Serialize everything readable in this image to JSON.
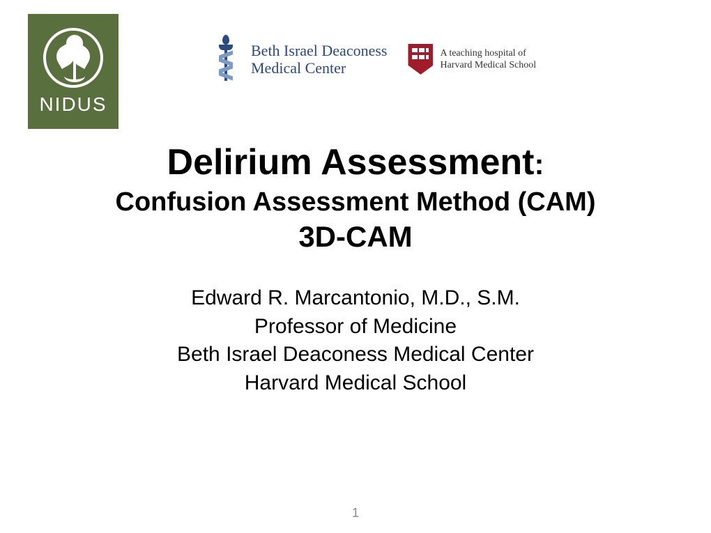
{
  "logos": {
    "nidus": {
      "label": "NIDUS",
      "bg_color": "#5a6f3e",
      "fg_color": "#ffffff"
    },
    "bidmc": {
      "line1": "Beth Israel Deaconess",
      "line2": "Medical Center",
      "color": "#2b4a7e"
    },
    "harvard": {
      "line1": "A teaching hospital of",
      "line2": "Harvard Medical School",
      "shield_color": "#a01c2b"
    }
  },
  "title": {
    "main": "Delirium Assessment",
    "colon": ":",
    "line2": "Confusion Assessment Method (CAM)",
    "line3": "3D-CAM"
  },
  "author": {
    "name": "Edward R. Marcantonio, M.D., S.M.",
    "role": "Professor of Medicine",
    "affil1": "Beth Israel Deaconess Medical Center",
    "affil2": "Harvard Medical School"
  },
  "page_number": "1",
  "colors": {
    "background": "#ffffff",
    "text": "#000000",
    "page_num": "#8a8a8a"
  },
  "typography": {
    "title_fontsize_pt": 40,
    "subtitle_fontsize_pt": 28,
    "body_fontsize_pt": 24,
    "font_family": "Arial"
  }
}
